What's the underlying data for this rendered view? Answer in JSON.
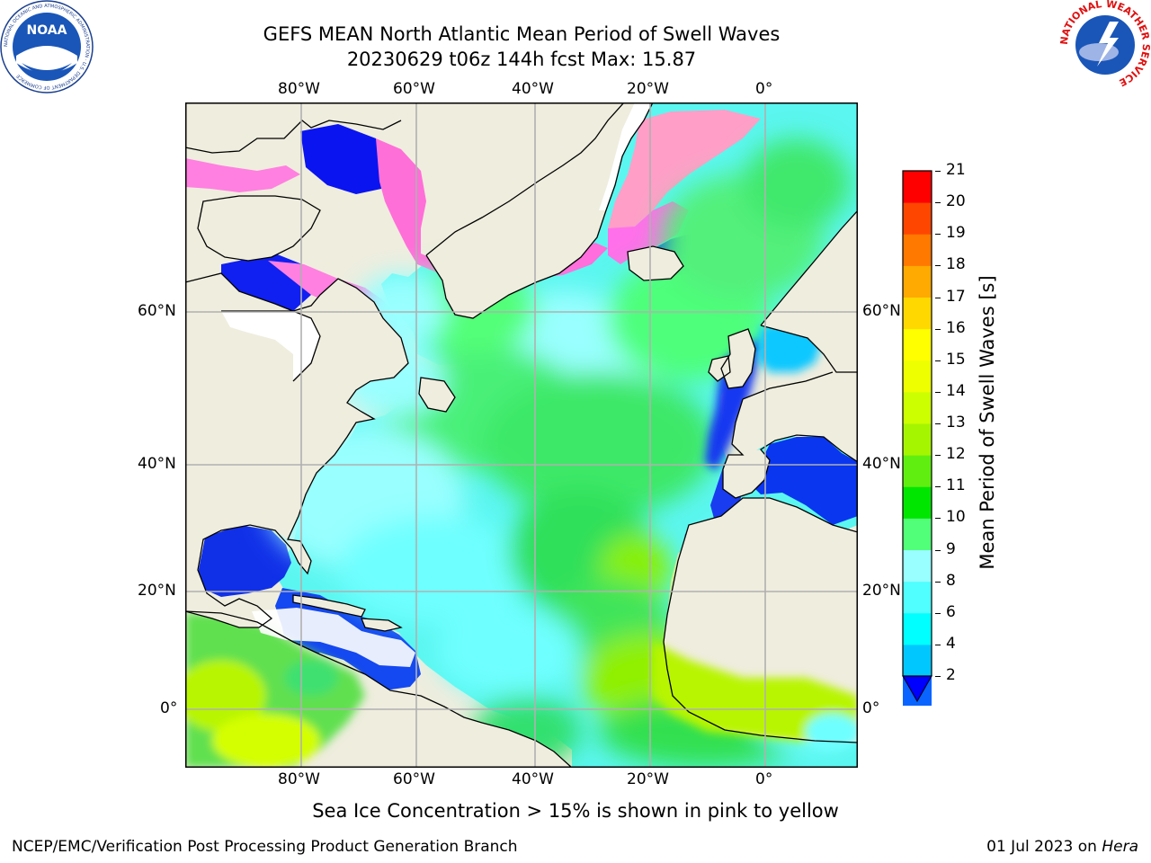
{
  "title_line1": "GEFS MEAN North Atlantic Mean Period of Swell Waves",
  "title_line2": "20230629 t06z 144h fcst   Max: 15.87",
  "map": {
    "lon_labels": [
      "80°W",
      "60°W",
      "40°W",
      "20°W",
      "0°"
    ],
    "lat_labels": [
      "60°N",
      "40°N",
      "20°N",
      "0°"
    ],
    "land_color": "#efedde",
    "ocean_unmasked_color": "#ffffff",
    "grid_color": "#b0b0b0"
  },
  "colorbar": {
    "label": "Mean Period of Swell Waves [s]",
    "ticks": [
      "2",
      "4",
      "6",
      "8",
      "9",
      "10",
      "11",
      "12",
      "13",
      "14",
      "15",
      "16",
      "17",
      "18",
      "19",
      "20",
      "21"
    ],
    "colors": [
      "#0a64ff",
      "#00c8ff",
      "#00ffff",
      "#50ffff",
      "#99ffff",
      "#52ff78",
      "#00e600",
      "#60ee10",
      "#a6f500",
      "#ccff00",
      "#eeff00",
      "#ffff00",
      "#ffd800",
      "#ffaa00",
      "#ff7800",
      "#ff4600",
      "#ff0000"
    ],
    "extend_color": "#0000ff"
  },
  "caption": "Sea Ice Concentration > 15% is shown in pink to yellow",
  "footer_left": "NCEP/EMC/Verification Post Processing Product Generation Branch",
  "footer_right_prefix": "01 Jul 2023 on",
  "footer_right_machine": "Hera",
  "logos": {
    "left_text": "NOAA",
    "left_ring": "NATIONAL OCEANIC AND ATMOSPHERIC ADMINISTRATION · U.S. DEPARTMENT OF COMMERCE",
    "right_ring": "NATIONAL WEATHER SERVICE"
  }
}
